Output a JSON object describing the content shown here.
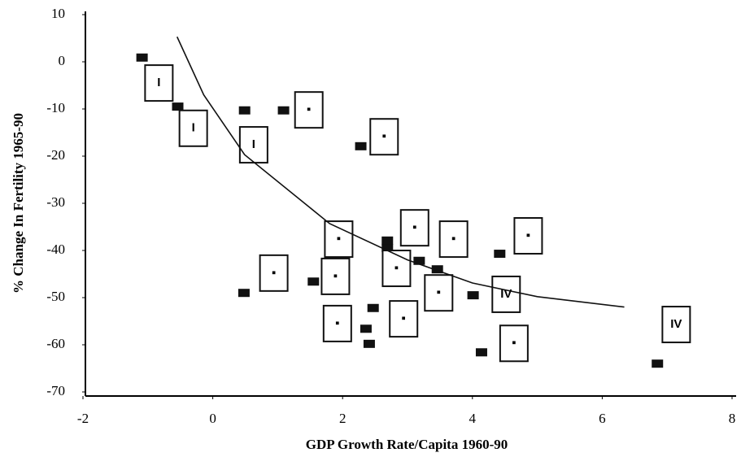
{
  "chart_data": {
    "type": "scatter",
    "x_label": "GDP Growth Rate/Capita 1960-90",
    "y_label": "% Change In Fertility 1965-90",
    "xlim": [
      -2,
      8
    ],
    "ylim": [
      -70,
      10
    ],
    "xticks": [
      -2,
      0,
      2,
      4,
      6,
      8
    ],
    "yticks": [
      10,
      0,
      -10,
      -20,
      -30,
      -40,
      -50,
      -60,
      -70
    ],
    "series": [
      {
        "marker": "filled",
        "color": "#111111",
        "x": [
          -1.09,
          -0.54,
          0.49,
          1.09,
          2.28,
          2.69,
          2.69,
          2.83,
          3.18,
          1.55,
          0.48,
          2.47,
          2.36,
          2.41,
          3.46,
          4.01,
          4.42,
          4.14,
          6.85
        ],
        "values": [
          0.9,
          -9.5,
          -10.3,
          -10.3,
          -17.9,
          -37.9,
          -39.5,
          -42.2,
          -42.2,
          -46.6,
          -49,
          -52.2,
          -56.6,
          -59.8,
          -44,
          -49.5,
          -40.7,
          -61.6,
          -64
        ]
      },
      {
        "marker": "box",
        "color": "#111111",
        "x": [
          -0.83,
          -0.3,
          0.63,
          1.48,
          2.64,
          1.94,
          0.94,
          1.89,
          1.92,
          3.11,
          2.83,
          3.48,
          2.94,
          3.71,
          4.52,
          4.86,
          4.64,
          7.14
        ],
        "values": [
          -4.5,
          -14.1,
          -17.6,
          -10.2,
          -15.9,
          -37.6,
          -44.8,
          -45.5,
          -55.5,
          -35.2,
          -43.8,
          -49,
          -54.5,
          -37.6,
          -49.3,
          -36.9,
          -59.7,
          -55.7
        ],
        "labels": [
          "I",
          "I",
          "I",
          "▪",
          "▪",
          "▪",
          "▪",
          "▪",
          "▪",
          "▪",
          "▪",
          "▪",
          "▪",
          "▪",
          "IV",
          "▪",
          "▪",
          "IV"
        ]
      },
      {
        "marker": "line",
        "color": "#111111",
        "x": [
          -0.55,
          -0.14,
          0.49,
          1.8,
          3.0,
          4.0,
          5.0,
          6.34
        ],
        "values": [
          5.3,
          -7,
          -19.7,
          -34.3,
          -42,
          -46.9,
          -49.8,
          -52
        ]
      }
    ]
  }
}
